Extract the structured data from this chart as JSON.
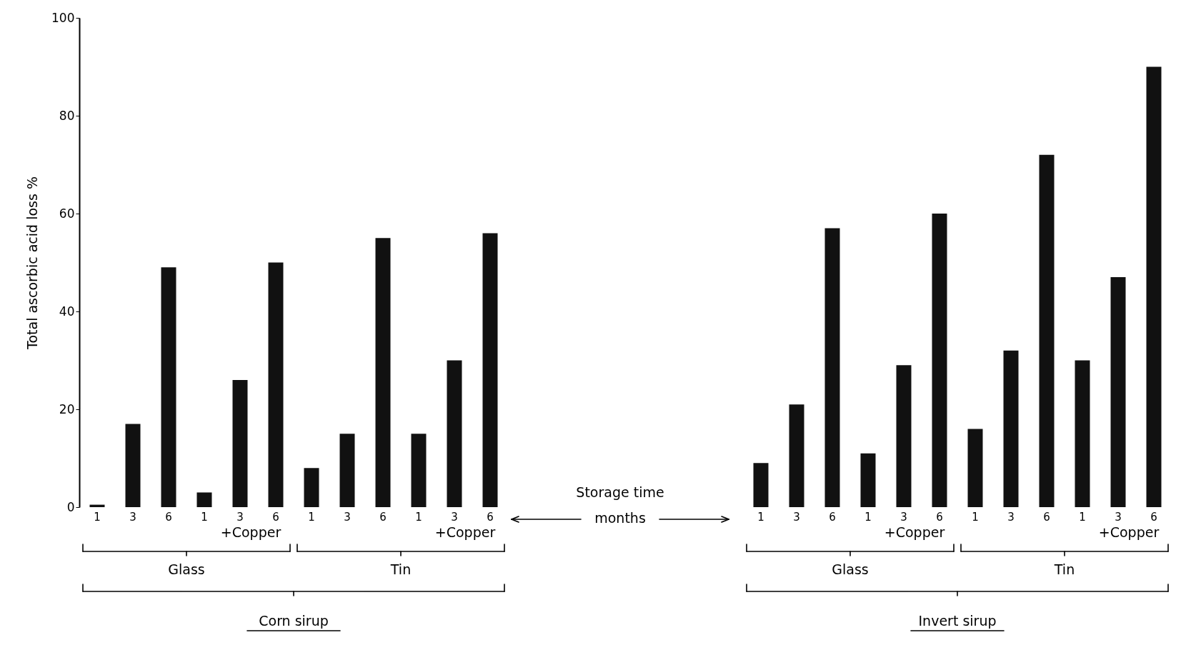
{
  "chart_data": [
    {
      "type": "bar",
      "ylabel": "Total ascorbic acid loss %",
      "categories": [
        "1",
        "3",
        "6",
        "1",
        "3",
        "6",
        "1",
        "3",
        "6",
        "1",
        "3",
        "6"
      ],
      "values": [
        0.5,
        17,
        49,
        3,
        26,
        50,
        8,
        15,
        55,
        15,
        30,
        56
      ],
      "color": "#111111",
      "ylim": [
        0,
        100
      ],
      "yticks": [
        0,
        20,
        40,
        60,
        80,
        100
      ],
      "annotations": [
        "+Copper",
        "+Copper",
        "Glass",
        "Tin",
        "Corn sirup",
        "Storage time\nmonths"
      ]
    },
    {
      "type": "bar",
      "categories": [
        "1",
        "3",
        "6",
        "1",
        "3",
        "6",
        "1",
        "3",
        "6",
        "1",
        "3",
        "6"
      ],
      "values": [
        9,
        21,
        57,
        11,
        29,
        60,
        16,
        32,
        72,
        30,
        47,
        90
      ],
      "color": "#111111",
      "ylim": [
        0,
        100
      ],
      "tick_labels": "x",
      "annotations": [
        "+Copper",
        "+Copper",
        "Glass",
        "Tin",
        "Invert sirup"
      ]
    }
  ]
}
